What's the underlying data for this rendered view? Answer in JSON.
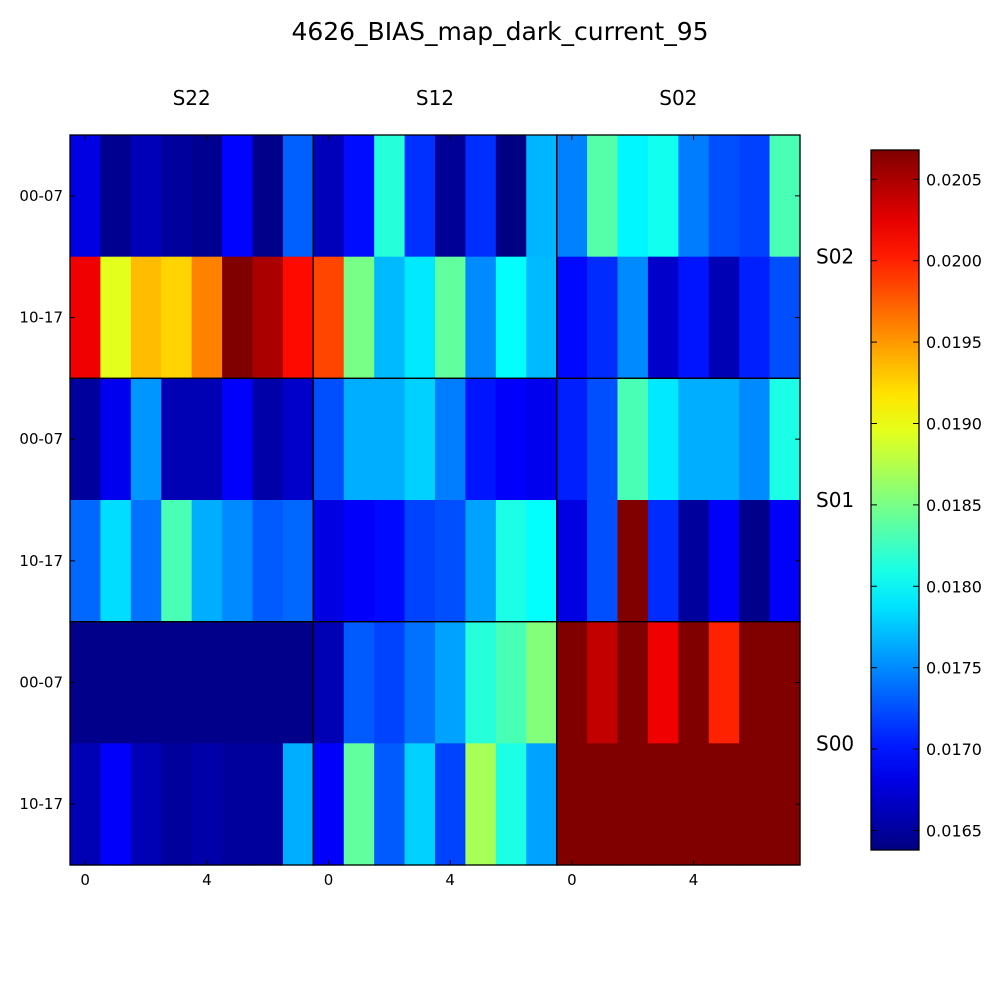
{
  "chart_data": {
    "type": "heatmap",
    "title": "4626_BIAS_map_dark_current_95",
    "column_panels": [
      "S22",
      "S12",
      "S02"
    ],
    "row_panels": [
      "S02",
      "S01",
      "S00"
    ],
    "row_tick_labels": [
      "00-07",
      "10-17"
    ],
    "column_tick_labels": [
      "0",
      "4"
    ],
    "column_tick_values": [
      0,
      4
    ],
    "columns_per_panel": 8,
    "colorbar": {
      "colormap": "jet",
      "range": [
        0.01638,
        0.02068
      ],
      "ticks": [
        0.0165,
        0.017,
        0.0175,
        0.018,
        0.0185,
        0.019,
        0.0195,
        0.02,
        0.0205
      ],
      "tick_labels": [
        "0.0165",
        "0.0170",
        "0.0175",
        "0.0180",
        "0.0185",
        "0.0190",
        "0.0195",
        "0.0200",
        "0.0205"
      ]
    },
    "rows": [
      {
        "row_panel": "S02",
        "row_label": "00-07",
        "values": [
          0.0168,
          0.01645,
          0.01662,
          0.0165,
          0.01645,
          0.01693,
          0.01643,
          0.01732,
          0.01663,
          0.01697,
          0.01815,
          0.01712,
          0.01648,
          0.01711,
          0.0164,
          0.01768,
          0.01746,
          0.01835,
          0.01796,
          0.01806,
          0.01744,
          0.01725,
          0.01719,
          0.0183
        ]
      },
      {
        "row_panel": "S02",
        "row_label": "10-17",
        "values": [
          0.0202,
          0.01895,
          0.01935,
          0.01925,
          0.0196,
          0.02068,
          0.0205,
          0.0201,
          0.01985,
          0.0185,
          0.0177,
          0.0179,
          0.0184,
          0.0175,
          0.018,
          0.0177,
          0.01695,
          0.0171,
          0.0175,
          0.0167,
          0.017,
          0.0166,
          0.01705,
          0.01725
        ]
      },
      {
        "row_panel": "S01",
        "row_label": "00-07",
        "values": [
          0.0165,
          0.01685,
          0.01755,
          0.0166,
          0.0166,
          0.0169,
          0.01655,
          0.0167,
          0.01725,
          0.01765,
          0.01765,
          0.0178,
          0.01745,
          0.017,
          0.0169,
          0.01685,
          0.01705,
          0.01725,
          0.0183,
          0.0179,
          0.01765,
          0.01765,
          0.0175,
          0.0181
        ]
      },
      {
        "row_panel": "S01",
        "row_label": "10-17",
        "values": [
          0.01735,
          0.01785,
          0.0174,
          0.0183,
          0.01765,
          0.0175,
          0.0173,
          0.01735,
          0.0168,
          0.0169,
          0.01695,
          0.0172,
          0.01725,
          0.0176,
          0.0181,
          0.018,
          0.0168,
          0.01725,
          0.02068,
          0.0171,
          0.0165,
          0.0169,
          0.01643,
          0.0169
        ]
      },
      {
        "row_panel": "S00",
        "row_label": "00-07",
        "values": [
          0.01643,
          0.01643,
          0.01643,
          0.01643,
          0.01643,
          0.01643,
          0.01643,
          0.01643,
          0.0166,
          0.0173,
          0.0172,
          0.0174,
          0.0176,
          0.01815,
          0.0183,
          0.01855,
          0.02068,
          0.0204,
          0.02068,
          0.0202,
          0.02068,
          0.02,
          0.02068,
          0.02068
        ]
      },
      {
        "row_panel": "S00",
        "row_label": "10-17",
        "values": [
          0.0166,
          0.0169,
          0.0166,
          0.0165,
          0.01655,
          0.0165,
          0.0165,
          0.01765,
          0.0169,
          0.0184,
          0.0173,
          0.0178,
          0.0172,
          0.0187,
          0.0181,
          0.0176,
          0.02068,
          0.02068,
          0.02068,
          0.02068,
          0.02068,
          0.02068,
          0.02068,
          0.02068
        ]
      }
    ]
  }
}
